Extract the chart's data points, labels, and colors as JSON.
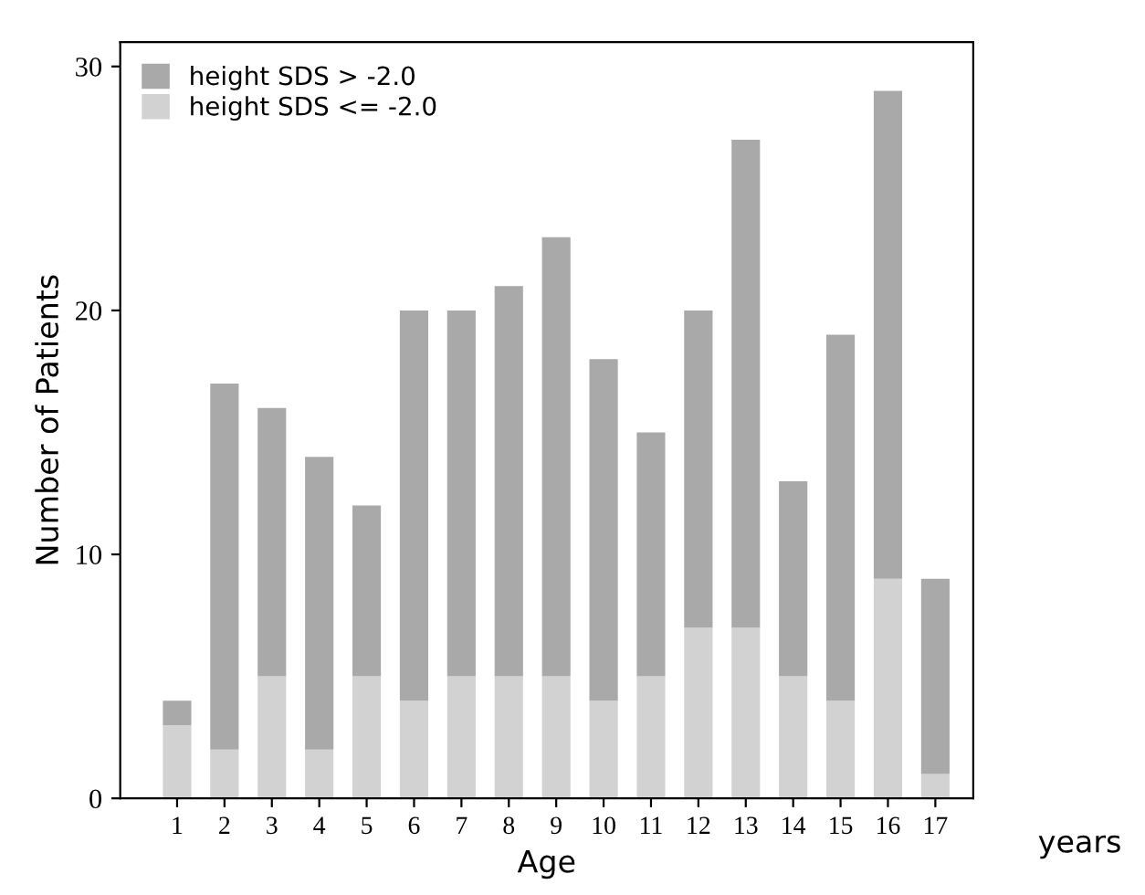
{
  "chart_data": {
    "type": "bar",
    "stacked": true,
    "xlabel": "Age",
    "ylabel": "Number of Patients",
    "annotations": [
      "years"
    ],
    "categories": [
      "1",
      "2",
      "3",
      "4",
      "5",
      "6",
      "7",
      "8",
      "9",
      "10",
      "11",
      "12",
      "13",
      "14",
      "15",
      "16",
      "17"
    ],
    "series": [
      {
        "name": "height SDS <= -2.0",
        "color": "#d2d2d2",
        "values": [
          3,
          2,
          5,
          2,
          5,
          4,
          5,
          5,
          5,
          4,
          5,
          7,
          7,
          5,
          4,
          9,
          1
        ]
      },
      {
        "name": "height SDS > -2.0",
        "color": "#a9a9a9",
        "values": [
          1,
          15,
          11,
          12,
          7,
          16,
          15,
          16,
          18,
          14,
          10,
          13,
          20,
          8,
          15,
          20,
          8
        ]
      }
    ],
    "ylim": [
      0,
      31
    ],
    "yticks": [
      0,
      10,
      20,
      30
    ],
    "grid": false,
    "legend": "top left"
  }
}
